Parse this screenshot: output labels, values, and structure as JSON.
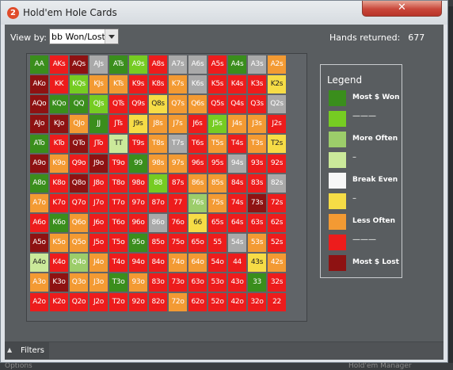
{
  "window": {
    "title": "Hold'em Hole Cards",
    "app_icon": "2"
  },
  "toolbar": {
    "view_by_label": "View by:",
    "view_by_value": "bb Won/Lost",
    "hands_label": "Hands returned:",
    "hands_value": "677"
  },
  "colors": {
    "dg": "#3a8e1c",
    "lg": "#76cc22",
    "pg": "#9ccd6a",
    "vl": "#cbe99a",
    "wh": "#f7f7f7",
    "ye": "#f6dc46",
    "or": "#f39a33",
    "rd": "#ed1c1c",
    "dr": "#8e1212",
    "gy": "#a9a9a9"
  },
  "grid": {
    "rows": [
      [
        "AA",
        "AKs",
        "AQs",
        "AJs",
        "ATs",
        "A9s",
        "A8s",
        "A7s",
        "A6s",
        "A5s",
        "A4s",
        "A3s",
        "A2s"
      ],
      [
        "AKo",
        "KK",
        "KQs",
        "KJs",
        "KTs",
        "K9s",
        "K8s",
        "K7s",
        "K6s",
        "K5s",
        "K4s",
        "K3s",
        "K2s"
      ],
      [
        "AQo",
        "KQo",
        "QQ",
        "QJs",
        "QTs",
        "Q9s",
        "Q8s",
        "Q7s",
        "Q6s",
        "Q5s",
        "Q4s",
        "Q3s",
        "Q2s"
      ],
      [
        "AJo",
        "KJo",
        "QJo",
        "JJ",
        "JTs",
        "J9s",
        "J8s",
        "J7s",
        "J6s",
        "J5s",
        "J4s",
        "J3s",
        "J2s"
      ],
      [
        "ATo",
        "KTo",
        "QTo",
        "JTo",
        "TT",
        "T9s",
        "T8s",
        "T7s",
        "T6s",
        "T5s",
        "T4s",
        "T3s",
        "T2s"
      ],
      [
        "A9o",
        "K9o",
        "Q9o",
        "J9o",
        "T9o",
        "99",
        "98s",
        "97s",
        "96s",
        "95s",
        "94s",
        "93s",
        "92s"
      ],
      [
        "A8o",
        "K8o",
        "Q8o",
        "J8o",
        "T8o",
        "98o",
        "88",
        "87s",
        "86s",
        "85s",
        "84s",
        "83s",
        "82s"
      ],
      [
        "A7o",
        "K7o",
        "Q7o",
        "J7o",
        "T7o",
        "97o",
        "87o",
        "77",
        "76s",
        "75s",
        "74s",
        "73s",
        "72s"
      ],
      [
        "A6o",
        "K6o",
        "Q6o",
        "J6o",
        "T6o",
        "96o",
        "86o",
        "76o",
        "66",
        "65s",
        "64s",
        "63s",
        "62s"
      ],
      [
        "A5o",
        "K5o",
        "Q5o",
        "J5o",
        "T5o",
        "95o",
        "85o",
        "75o",
        "65o",
        "55",
        "54s",
        "53s",
        "52s"
      ],
      [
        "A4o",
        "K4o",
        "Q4o",
        "J4o",
        "T4o",
        "94o",
        "84o",
        "74o",
        "64o",
        "54o",
        "44",
        "43s",
        "42s"
      ],
      [
        "A3o",
        "K3o",
        "Q3o",
        "J3o",
        "T3o",
        "93o",
        "83o",
        "73o",
        "63o",
        "53o",
        "43o",
        "33",
        "32s"
      ],
      [
        "A2o",
        "K2o",
        "Q2o",
        "J2o",
        "T2o",
        "92o",
        "82o",
        "72o",
        "62o",
        "52o",
        "42o",
        "32o",
        "22"
      ]
    ],
    "color_rows": [
      [
        "dg",
        "rd",
        "dr",
        "gy",
        "dg",
        "lg",
        "rd",
        "gy",
        "gy",
        "rd",
        "dg",
        "gy",
        "or"
      ],
      [
        "dr",
        "rd",
        "lg",
        "or",
        "or",
        "rd",
        "rd",
        "or",
        "gy",
        "rd",
        "rd",
        "rd",
        "ye"
      ],
      [
        "dr",
        "dg",
        "dg",
        "lg",
        "rd",
        "rd",
        "ye",
        "or",
        "or",
        "rd",
        "rd",
        "rd",
        "gy"
      ],
      [
        "dr",
        "dr",
        "or",
        "dg",
        "rd",
        "ye",
        "or",
        "or",
        "rd",
        "lg",
        "or",
        "or",
        "rd"
      ],
      [
        "dg",
        "rd",
        "dr",
        "rd",
        "vl",
        "rd",
        "or",
        "gy",
        "rd",
        "or",
        "rd",
        "or",
        "ye"
      ],
      [
        "dr",
        "or",
        "rd",
        "dr",
        "rd",
        "dg",
        "or",
        "or",
        "rd",
        "rd",
        "gy",
        "rd",
        "rd"
      ],
      [
        "dg",
        "rd",
        "dr",
        "rd",
        "rd",
        "rd",
        "lg",
        "rd",
        "or",
        "or",
        "rd",
        "rd",
        "gy"
      ],
      [
        "or",
        "rd",
        "rd",
        "rd",
        "rd",
        "rd",
        "rd",
        "rd",
        "pg",
        "or",
        "rd",
        "dr",
        "rd"
      ],
      [
        "rd",
        "dg",
        "or",
        "rd",
        "rd",
        "rd",
        "gy",
        "rd",
        "ye",
        "rd",
        "rd",
        "rd",
        "rd"
      ],
      [
        "dr",
        "or",
        "or",
        "rd",
        "rd",
        "dg",
        "rd",
        "rd",
        "rd",
        "rd",
        "gy",
        "or",
        "rd"
      ],
      [
        "vl",
        "rd",
        "pg",
        "or",
        "rd",
        "rd",
        "rd",
        "or",
        "or",
        "rd",
        "rd",
        "ye",
        "or"
      ],
      [
        "or",
        "dr",
        "or",
        "or",
        "dg",
        "or",
        "rd",
        "rd",
        "rd",
        "rd",
        "rd",
        "dg",
        "rd"
      ],
      [
        "rd",
        "rd",
        "rd",
        "rd",
        "rd",
        "rd",
        "rd",
        "or",
        "rd",
        "rd",
        "rd",
        "rd",
        "rd"
      ]
    ]
  },
  "legend": {
    "title": "Legend",
    "items": [
      {
        "color": "dg",
        "label": "Most $ Won"
      },
      {
        "color": "lg",
        "label": "———"
      },
      {
        "color": "pg",
        "label": "More Often"
      },
      {
        "color": "vl",
        "label": "–"
      },
      {
        "color": "wh",
        "label": "Break Even"
      },
      {
        "color": "ye",
        "label": "–"
      },
      {
        "color": "or",
        "label": "Less Often"
      },
      {
        "color": "rd",
        "label": "———"
      },
      {
        "color": "dr",
        "label": "Most $ Lost"
      }
    ]
  },
  "filters": {
    "label": "Filters",
    "icon": "caret-up-icon"
  },
  "background": {
    "left_text": "Options",
    "right_text": "Hold'em Manager"
  }
}
